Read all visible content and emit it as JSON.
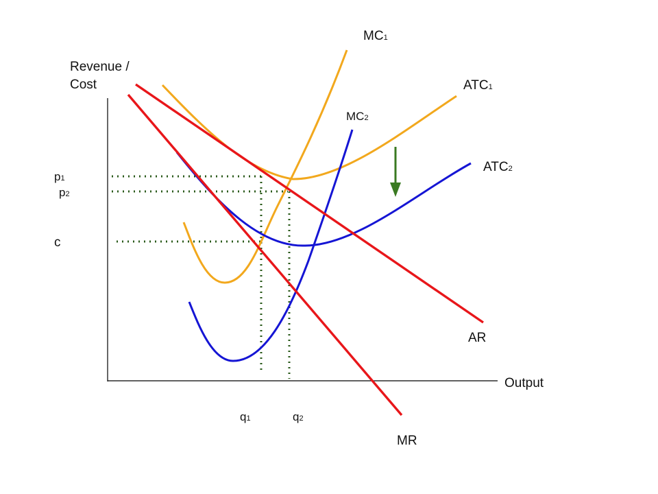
{
  "axes": {
    "y_label_line1": "Revenue /",
    "y_label_line2": "Cost",
    "x_label": "Output"
  },
  "curves": {
    "mc1": {
      "base": "MC",
      "sub": "1"
    },
    "mc2": {
      "base": "MC",
      "sub": "2"
    },
    "atc1": {
      "base": "ATC",
      "sub": "1"
    },
    "atc2": {
      "base": "ATC",
      "sub": "2"
    },
    "ar": "AR",
    "mr": "MR"
  },
  "price_labels": {
    "p1": {
      "base": "p",
      "sub": "1"
    },
    "p2": {
      "base": "p",
      "sub": "2"
    },
    "c": "c"
  },
  "quantity_labels": {
    "q1": {
      "base": "q",
      "sub": "1"
    },
    "q2": {
      "base": "q",
      "sub": "2"
    }
  },
  "colors": {
    "demand_red": "#e8161a",
    "cost_orange": "#f2a81d",
    "cost_blue": "#1515d4",
    "guide_green": "#2a5a1a",
    "arrow_green": "#3a7a22",
    "axis": "#000000"
  }
}
